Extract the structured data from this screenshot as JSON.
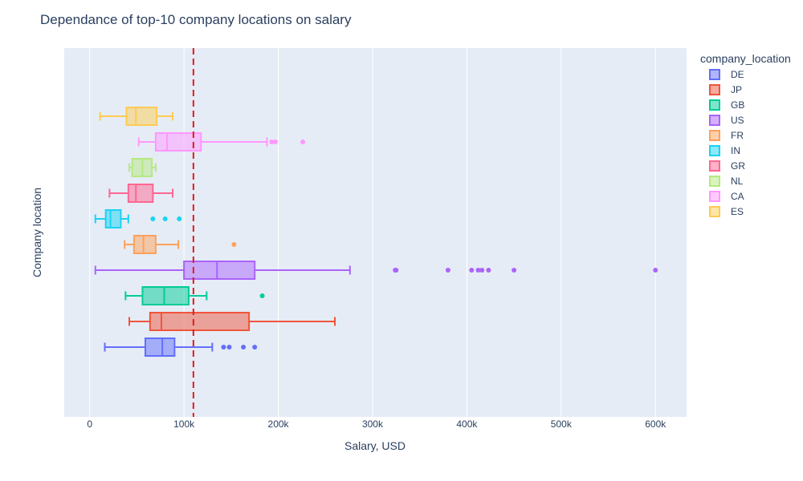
{
  "chart_data": {
    "type": "box",
    "title": "Dependance of top-10 company locations on salary",
    "xlabel": "Salary, USD",
    "ylabel": "Company location",
    "xlim": [
      -27000,
      633000
    ],
    "xticks": [
      0,
      100000,
      200000,
      300000,
      400000,
      500000,
      600000
    ],
    "xtick_labels": [
      "0",
      "100k",
      "200k",
      "300k",
      "400k",
      "500k",
      "600k"
    ],
    "grid": true,
    "legend_title": "company_location",
    "legend_position": "right",
    "reference_line": {
      "x": 110000,
      "color": "#e31a1c",
      "style": "dashed"
    },
    "series": [
      {
        "name": "DE",
        "color": "#636efa",
        "min": 16000,
        "q1": 59000,
        "median": 77000,
        "q3": 90000,
        "max": 130000,
        "outliers": [
          142000,
          148000,
          163000,
          175000
        ]
      },
      {
        "name": "JP",
        "color": "#ef553b",
        "min": 42000,
        "q1": 64000,
        "median": 76000,
        "q3": 169000,
        "max": 260000,
        "outliers": []
      },
      {
        "name": "GB",
        "color": "#00cc96",
        "min": 38000,
        "q1": 56000,
        "median": 79000,
        "q3": 105000,
        "max": 124000,
        "outliers": [
          183000
        ]
      },
      {
        "name": "US",
        "color": "#ab63fa",
        "min": 6000,
        "q1": 100000,
        "median": 135000,
        "q3": 175000,
        "max": 276000,
        "outliers": [
          324000,
          325000,
          380000,
          405000,
          412000,
          416000,
          423000,
          450000,
          600000
        ]
      },
      {
        "name": "FR",
        "color": "#ffa15a",
        "min": 37000,
        "q1": 47000,
        "median": 57000,
        "q3": 70000,
        "max": 94000,
        "outliers": [
          153000
        ]
      },
      {
        "name": "IN",
        "color": "#19d3f3",
        "min": 6000,
        "q1": 17000,
        "median": 22000,
        "q3": 33000,
        "max": 41000,
        "outliers": [
          67000,
          80000,
          95000
        ]
      },
      {
        "name": "GR",
        "color": "#ff6692",
        "min": 21000,
        "q1": 41000,
        "median": 49000,
        "q3": 67000,
        "max": 88000,
        "outliers": []
      },
      {
        "name": "NL",
        "color": "#b6e880",
        "min": 42000,
        "q1": 45000,
        "median": 56000,
        "q3": 66000,
        "max": 70000,
        "outliers": []
      },
      {
        "name": "CA",
        "color": "#ff97ff",
        "min": 52000,
        "q1": 70000,
        "median": 82000,
        "q3": 118000,
        "max": 188000,
        "outliers": [
          193000,
          197000,
          226000
        ]
      },
      {
        "name": "ES",
        "color": "#fecb52",
        "min": 11000,
        "q1": 39000,
        "median": 49000,
        "q3": 71000,
        "max": 88000,
        "outliers": []
      }
    ]
  }
}
